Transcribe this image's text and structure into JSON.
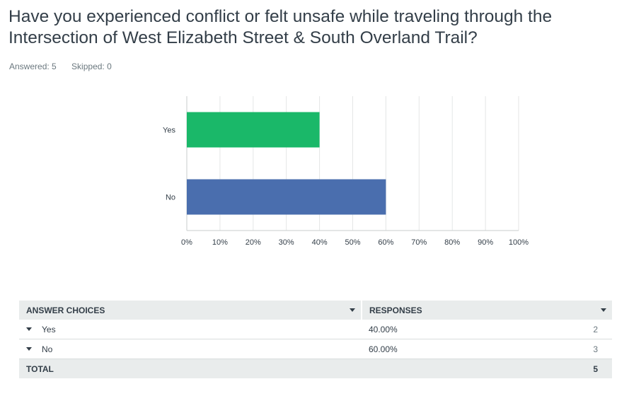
{
  "question": {
    "title": "Have you experienced conflict or felt unsafe while traveling through the Intersection of West Elizabeth Street & South Overland Trail?",
    "answered": "Answered: 5",
    "skipped": "Skipped: 0"
  },
  "chart_data": {
    "type": "bar",
    "orientation": "horizontal",
    "categories": [
      "Yes",
      "No"
    ],
    "values": [
      40,
      60
    ],
    "colors": [
      "#1ab869",
      "#4a6eae"
    ],
    "xlim": [
      0,
      100
    ],
    "xticks": [
      "0%",
      "10%",
      "20%",
      "30%",
      "40%",
      "50%",
      "60%",
      "70%",
      "80%",
      "90%",
      "100%"
    ],
    "grid": true
  },
  "table": {
    "headers": [
      "ANSWER CHOICES",
      "RESPONSES"
    ],
    "rows": [
      {
        "choice": "Yes",
        "percent": "40.00%",
        "count": "2"
      },
      {
        "choice": "No",
        "percent": "60.00%",
        "count": "3"
      }
    ],
    "total_label": "TOTAL",
    "total_count": "5"
  }
}
